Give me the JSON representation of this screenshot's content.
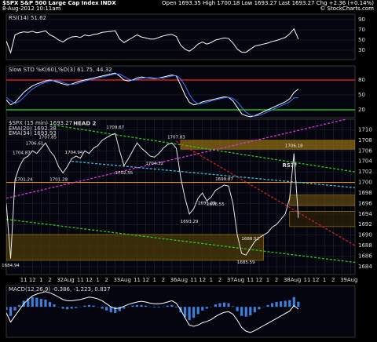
{
  "header": {
    "symbol": "$SPX S&P 500 Large Cap Index INDX",
    "date": "8-Aug-2012 10:11am",
    "quote": "Open 1693.35 High 1700.18 Low 1693.27 Last 1693.27 Chg +2.36 (+0.14%)",
    "credit": "© StockCharts.com"
  },
  "chart_data": [
    {
      "type": "line",
      "title": "RSI(14) 51.62",
      "x": [
        0,
        2,
        4,
        6,
        8,
        10,
        12,
        14,
        16,
        18,
        20,
        22,
        24,
        26,
        28,
        30,
        32,
        34,
        36,
        38,
        40,
        42,
        44,
        46,
        48,
        50,
        52,
        54,
        56,
        58,
        60,
        62,
        64,
        66,
        68,
        70,
        72,
        74,
        76,
        78,
        80,
        82,
        84,
        86,
        88,
        90,
        92,
        94,
        96,
        98,
        100,
        102,
        104,
        106,
        108,
        110,
        112,
        114,
        116,
        118,
        120,
        122,
        124,
        126,
        128,
        130,
        132,
        134
      ],
      "series": [
        {
          "kind": "line",
          "color": "#ffffff",
          "values": [
            48,
            25,
            60,
            64,
            66,
            65,
            67,
            64,
            66,
            68,
            60,
            56,
            50,
            46,
            52,
            56,
            57,
            55,
            60,
            58,
            61,
            62,
            65,
            66,
            67,
            68,
            52,
            45,
            50,
            55,
            60,
            56,
            54,
            52,
            52,
            55,
            58,
            60,
            61,
            57,
            40,
            32,
            28,
            34,
            42,
            46,
            42,
            45,
            50,
            52,
            54,
            53,
            44,
            32,
            26,
            26,
            32,
            38,
            40,
            42,
            44,
            47,
            49,
            52,
            55,
            62,
            72,
            51.62
          ]
        }
      ],
      "xlim": [
        0,
        160
      ],
      "ylim": [
        11.5,
        100.8
      ],
      "yticks": [
        30,
        50,
        70,
        90
      ]
    },
    {
      "type": "line",
      "title": "Slow STO %K(60),%D(3) 61.75, 44.32",
      "x": [
        0,
        2,
        4,
        6,
        8,
        10,
        12,
        14,
        16,
        18,
        20,
        22,
        24,
        26,
        28,
        30,
        32,
        34,
        36,
        38,
        40,
        42,
        44,
        46,
        48,
        50,
        52,
        54,
        56,
        58,
        60,
        62,
        64,
        66,
        68,
        70,
        72,
        74,
        76,
        78,
        80,
        82,
        84,
        86,
        88,
        90,
        92,
        94,
        96,
        98,
        100,
        102,
        104,
        106,
        108,
        110,
        112,
        114,
        116,
        118,
        120,
        122,
        124,
        126,
        128,
        130,
        132,
        134
      ],
      "series": [
        {
          "kind": "line",
          "color": "#ffffff",
          "values": [
            40,
            30,
            35,
            45,
            55,
            62,
            68,
            72,
            75,
            78,
            80,
            78,
            75,
            72,
            70,
            72,
            75,
            78,
            80,
            82,
            84,
            86,
            88,
            90,
            92,
            94,
            88,
            80,
            78,
            80,
            84,
            86,
            85,
            84,
            83,
            84,
            86,
            88,
            90,
            88,
            70,
            50,
            35,
            30,
            32,
            36,
            38,
            40,
            42,
            44,
            46,
            45,
            38,
            25,
            12,
            8,
            6,
            8,
            12,
            16,
            20,
            24,
            28,
            32,
            36,
            42,
            55,
            61.75
          ]
        },
        {
          "kind": "line",
          "color": "#3a78ff",
          "values": [
            45,
            38,
            33,
            37,
            45,
            54,
            62,
            67,
            72,
            75,
            78,
            79,
            78,
            75,
            72,
            71,
            72,
            75,
            78,
            80,
            82,
            84,
            86,
            88,
            90,
            92,
            92,
            87,
            82,
            79,
            81,
            83,
            85,
            85,
            84,
            84,
            84,
            86,
            88,
            89,
            82,
            69,
            51,
            38,
            32,
            33,
            35,
            38,
            40,
            42,
            44,
            45,
            43,
            36,
            25,
            15,
            9,
            7,
            9,
            12,
            16,
            20,
            24,
            28,
            32,
            36,
            44,
            44.32
          ]
        }
      ],
      "hlines": [
        {
          "y": 80,
          "color": "#ff2020"
        },
        {
          "y": 20,
          "color": "#20e020"
        }
      ],
      "xlim": [
        0,
        160
      ],
      "ylim": [
        4.2,
        108.4
      ],
      "yticks": [
        20,
        50,
        80
      ]
    },
    {
      "type": "line",
      "title": "$SPX (15 min) 1693.27",
      "notes": [
        "EMA(20) 1692.38",
        "EMA(34) 1693.93"
      ],
      "x": [
        0,
        2,
        4,
        6,
        8,
        10,
        12,
        14,
        16,
        18,
        20,
        22,
        24,
        26,
        28,
        30,
        32,
        34,
        36,
        38,
        40,
        42,
        44,
        46,
        48,
        50,
        52,
        54,
        56,
        58,
        60,
        62,
        64,
        66,
        68,
        70,
        72,
        74,
        76,
        78,
        80,
        82,
        84,
        86,
        88,
        90,
        92,
        94,
        96,
        98,
        100,
        102,
        104,
        106,
        108,
        110,
        112,
        114,
        116,
        118,
        120,
        122,
        124,
        126,
        128,
        130,
        132,
        134
      ],
      "series": [
        {
          "kind": "line",
          "color": "#e8e8e8",
          "values": [
            1696,
            1685.5,
            1700.5,
            1703,
            1704.5,
            1705,
            1706,
            1705.5,
            1706.5,
            1707.5,
            1706,
            1705,
            1703,
            1701.8,
            1703,
            1704.5,
            1705,
            1704.6,
            1706,
            1705.5,
            1706.5,
            1707,
            1708,
            1708.5,
            1709,
            1709.3,
            1706,
            1703.2,
            1704.5,
            1706,
            1707.5,
            1706.5,
            1705.8,
            1705,
            1704.8,
            1705.5,
            1706.5,
            1707.2,
            1707.5,
            1706.5,
            1701,
            1697,
            1694,
            1695,
            1697,
            1698,
            1696.5,
            1697.2,
            1698.5,
            1699,
            1699.5,
            1699.3,
            1696,
            1690,
            1686.5,
            1686.2,
            1687.5,
            1688.8,
            1689.5,
            1690,
            1690.5,
            1691.5,
            1692,
            1693,
            1694,
            1697,
            1705.5,
            1693.27
          ]
        }
      ],
      "xlim": [
        0,
        160
      ],
      "xticks": [
        {
          "value": 8,
          "label": "11"
        },
        {
          "value": 12,
          "label": "12"
        },
        {
          "value": 16,
          "label": "1"
        },
        {
          "value": 20,
          "label": "2"
        },
        {
          "value": 24,
          "label": "3"
        },
        {
          "value": 28,
          "label": "2Aug"
        },
        {
          "value": 34,
          "label": "11"
        },
        {
          "value": 38,
          "label": "12"
        },
        {
          "value": 42,
          "label": "1"
        },
        {
          "value": 46,
          "label": "2"
        },
        {
          "value": 50,
          "label": "3"
        },
        {
          "value": 54,
          "label": "3Aug"
        },
        {
          "value": 60,
          "label": "11"
        },
        {
          "value": 64,
          "label": "12"
        },
        {
          "value": 68,
          "label": "1"
        },
        {
          "value": 72,
          "label": "2"
        },
        {
          "value": 76,
          "label": "3"
        },
        {
          "value": 80,
          "label": "6Aug"
        },
        {
          "value": 86,
          "label": "11"
        },
        {
          "value": 90,
          "label": "12"
        },
        {
          "value": 94,
          "label": "1"
        },
        {
          "value": 98,
          "label": "2"
        },
        {
          "value": 102,
          "label": "3"
        },
        {
          "value": 106,
          "label": "7Aug"
        },
        {
          "value": 112,
          "label": "11"
        },
        {
          "value": 116,
          "label": "12"
        },
        {
          "value": 120,
          "label": "1"
        },
        {
          "value": 124,
          "label": "2"
        },
        {
          "value": 128,
          "label": "3"
        },
        {
          "value": 132,
          "label": "8Aug"
        },
        {
          "value": 138,
          "label": "11"
        },
        {
          "value": 142,
          "label": "12"
        },
        {
          "value": 146,
          "label": "1"
        },
        {
          "value": 150,
          "label": "2"
        },
        {
          "value": 154,
          "label": "3"
        },
        {
          "value": 158,
          "label": "9Aug"
        }
      ],
      "ylim": [
        1682.5,
        1712
      ],
      "yticks": [
        1684,
        1686,
        1688,
        1690,
        1692,
        1694,
        1696,
        1698,
        1700,
        1702,
        1704,
        1706,
        1708,
        1710
      ],
      "bands": [
        {
          "x": [
            80,
            160
          ],
          "y": [
            1706.3,
            1708
          ],
          "color": "#8c6b12"
        },
        {
          "x": [
            130,
            160
          ],
          "y": [
            1695.6,
            1697.6
          ],
          "color": "#5a4510"
        },
        {
          "x": [
            130,
            160
          ],
          "y": [
            1691.6,
            1694.5
          ],
          "color": "#2a2008"
        },
        {
          "x": [
            0,
            118
          ],
          "y": [
            1685.2,
            1690.1
          ],
          "color": "#4a3a0a"
        }
      ],
      "hlines": [
        {
          "y": 1700,
          "color": "#e08a1e"
        }
      ],
      "trendlines": [
        {
          "x": [
            20,
            160
          ],
          "y": [
            1711,
            1702
          ],
          "color": "#22cc22"
        },
        {
          "x": [
            0,
            156
          ],
          "y": [
            1697,
            1712
          ],
          "color": "#dd33dd"
        },
        {
          "x": [
            0,
            160
          ],
          "y": [
            1693,
            1684.8
          ],
          "color": "#22cc22"
        },
        {
          "x": [
            78,
            160
          ],
          "y": [
            1707.8,
            1688
          ],
          "color": "#cc2222"
        },
        {
          "x": [
            30,
            160
          ],
          "y": [
            1704,
            1699
          ],
          "color": "#44bbcc"
        }
      ],
      "price_labels": [
        {
          "x": 2,
          "y": 1684.94,
          "side": "below"
        },
        {
          "x": 8,
          "y": 1701.24,
          "side": "below"
        },
        {
          "x": 7,
          "y": 1704.87,
          "side": "above"
        },
        {
          "x": 13,
          "y": 1706.61,
          "side": "above"
        },
        {
          "x": 19,
          "y": 1707.85,
          "side": "above"
        },
        {
          "x": 24,
          "y": 1701.29,
          "side": "below"
        },
        {
          "x": 31,
          "y": 1704.94,
          "side": "above"
        },
        {
          "x": 50,
          "y": 1709.67,
          "side": "above"
        },
        {
          "x": 54,
          "y": 1702.55,
          "side": "below"
        },
        {
          "x": 68,
          "y": 1704.32,
          "side": "below"
        },
        {
          "x": 78,
          "y": 1707.83,
          "side": "above"
        },
        {
          "x": 84,
          "y": 1693.29,
          "side": "below"
        },
        {
          "x": 92,
          "y": 1695.29,
          "side": "above"
        },
        {
          "x": 96,
          "y": 1696.55,
          "side": "below"
        },
        {
          "x": 100,
          "y": 1699.87,
          "side": "above"
        },
        {
          "x": 110,
          "y": 1685.59,
          "side": "below"
        },
        {
          "x": 112,
          "y": 1688.52,
          "side": "above"
        },
        {
          "x": 132,
          "y": 1706.18,
          "side": "above"
        }
      ],
      "annotations": [
        {
          "text": "HEAD 2",
          "x": 36,
          "y": 1711.2,
          "color": "#4fc3f7"
        },
        {
          "text": "RS??",
          "x": 130,
          "y": 1703.2,
          "color": "#4fc3f7"
        }
      ]
    },
    {
      "type": "combo",
      "title": "MACD(12,26,9) -0.386, -1.223, 0.837",
      "x": [
        0,
        2,
        4,
        6,
        8,
        10,
        12,
        14,
        16,
        18,
        20,
        22,
        24,
        26,
        28,
        30,
        32,
        34,
        36,
        38,
        40,
        42,
        44,
        46,
        48,
        50,
        52,
        54,
        56,
        58,
        60,
        62,
        64,
        66,
        68,
        70,
        72,
        74,
        76,
        78,
        80,
        82,
        84,
        86,
        88,
        90,
        92,
        94,
        96,
        98,
        100,
        102,
        104,
        106,
        108,
        110,
        112,
        114,
        116,
        118,
        120,
        122,
        124,
        126,
        128,
        130,
        132,
        134
      ],
      "series": [
        {
          "kind": "bar",
          "color": "#3d7fd9",
          "values": [
            -0.5,
            -1.5,
            -0.6,
            0.3,
            1,
            1.4,
            1.6,
            1.5,
            1.3,
            1.2,
            0.8,
            0.4,
            0,
            -0.3,
            -0.4,
            -0.3,
            -0.2,
            0,
            0.2,
            0.3,
            0.2,
            0,
            -0.3,
            -0.6,
            -0.9,
            -1,
            -0.7,
            -0.3,
            0,
            0.2,
            0.3,
            0.3,
            0.2,
            0,
            -0.1,
            -0.1,
            0,
            0.2,
            0.3,
            -0.1,
            -0.9,
            -1.7,
            -2.2,
            -1.8,
            -1.2,
            -0.6,
            -0.3,
            0,
            0.4,
            0.6,
            0.7,
            0.6,
            0.1,
            -0.7,
            -1.5,
            -1.6,
            -1.4,
            -0.9,
            -0.4,
            0,
            0.3,
            0.6,
            0.8,
            0.9,
            1,
            1.1,
            1.6,
            0.837
          ]
        },
        {
          "kind": "line",
          "color": "#ffffff",
          "values": [
            -1,
            -2.5,
            -1.5,
            -0.5,
            0.5,
            1.2,
            1.8,
            2.1,
            2.3,
            2.5,
            2.3,
            2,
            1.6,
            1.2,
            1,
            1,
            1.1,
            1.2,
            1.4,
            1.6,
            1.5,
            1.3,
            1,
            0.5,
            0,
            -0.3,
            -0.2,
            0.1,
            0.4,
            0.6,
            0.8,
            0.9,
            0.8,
            0.6,
            0.5,
            0.5,
            0.6,
            0.8,
            1,
            0.6,
            -0.5,
            -1.8,
            -3,
            -3.2,
            -3,
            -2.6,
            -2.4,
            -2.1,
            -1.6,
            -1.2,
            -0.9,
            -0.8,
            -1.2,
            -2.2,
            -3.4,
            -4,
            -4.2,
            -3.9,
            -3.5,
            -3.1,
            -2.7,
            -2.3,
            -1.9,
            -1.5,
            -1.1,
            -0.7,
            0.2,
            -0.386
          ]
        }
      ],
      "xlim": [
        0,
        160
      ],
      "ylim": [
        -5,
        3.5
      ]
    }
  ]
}
